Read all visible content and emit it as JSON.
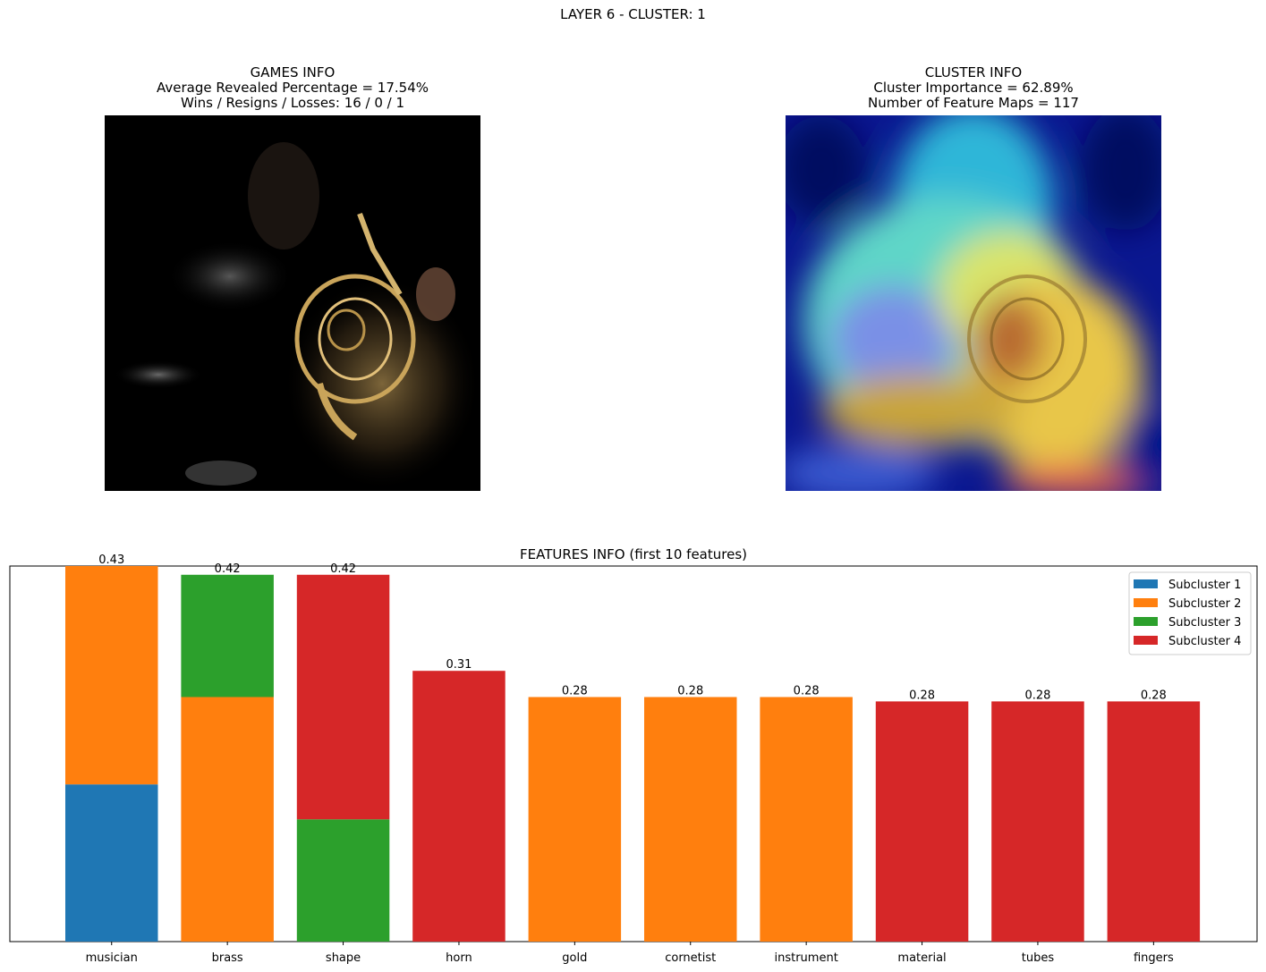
{
  "suptitle": "LAYER 6 - CLUSTER: 1",
  "games_info": {
    "title": "GAMES INFO",
    "revealed": "Average Revealed Percentage = 17.54%",
    "record": "Wins / Resigns / Losses: 16 / 0 / 1"
  },
  "cluster_info": {
    "title": "CLUSTER INFO",
    "importance": "Cluster Importance = 62.89%",
    "feature_maps": "Number of Feature Maps = 117"
  },
  "colors": {
    "subcluster_1": "#1f77b4",
    "subcluster_2": "#ff7f0e",
    "subcluster_3": "#2ca02c",
    "subcluster_4": "#d62728"
  },
  "chart_data": {
    "type": "bar",
    "stacked": true,
    "title": "FEATURES INFO (first 10 features)",
    "categories": [
      "musician",
      "brass",
      "shape",
      "horn",
      "gold",
      "cornetist",
      "instrument",
      "material",
      "tubes",
      "fingers"
    ],
    "series": [
      {
        "name": "Subcluster 1",
        "color": "#1f77b4",
        "values": [
          0.18,
          0,
          0,
          0,
          0,
          0,
          0,
          0,
          0,
          0
        ]
      },
      {
        "name": "Subcluster 2",
        "color": "#ff7f0e",
        "values": [
          0.25,
          0.28,
          0,
          0,
          0.28,
          0.28,
          0.28,
          0,
          0,
          0
        ]
      },
      {
        "name": "Subcluster 3",
        "color": "#2ca02c",
        "values": [
          0,
          0.14,
          0.14,
          0,
          0,
          0,
          0,
          0,
          0,
          0
        ]
      },
      {
        "name": "Subcluster 4",
        "color": "#d62728",
        "values": [
          0,
          0,
          0.28,
          0.31,
          0,
          0,
          0,
          0.275,
          0.275,
          0.275
        ]
      }
    ],
    "total_labels": [
      "0.43",
      "0.42",
      "0.42",
      "0.31",
      "0.28",
      "0.28",
      "0.28",
      "0.28",
      "0.28",
      "0.28"
    ],
    "ylim": [
      0,
      0.43
    ],
    "y_ticks_visible": false,
    "legend_position": "upper right"
  }
}
